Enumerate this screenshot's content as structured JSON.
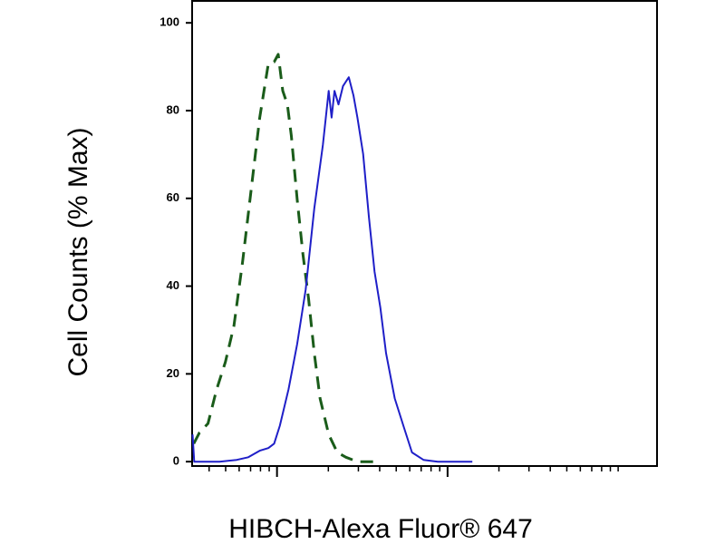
{
  "chart_data": {
    "type": "line",
    "ylabel": "Cell Counts (% Max)",
    "xlabel": "HIBCH-Alexa Fluor® 647",
    "xscale": "log",
    "xlim": [
      31.8,
      16900
    ],
    "xticks": [
      100,
      1000
    ],
    "xminorticks": [
      40,
      50,
      60,
      70,
      80,
      90,
      200,
      300,
      400,
      500,
      600,
      700,
      800,
      900,
      2000,
      3000,
      4000,
      5000,
      6000,
      7000,
      8000,
      9000,
      10000
    ],
    "ylim": [
      -1,
      105
    ],
    "yticks": [
      0,
      20,
      40,
      60,
      80,
      100
    ],
    "series": [
      {
        "color": "#1a5c1a",
        "dash": true,
        "x": [
          32.5,
          35.1,
          39.4,
          44.3,
          49.8,
          55.9,
          62.8,
          70.5,
          79.2,
          89.0,
          96.2,
          101.6,
          108.1,
          115,
          121.4,
          131.2,
          141.8,
          153.1,
          165.5,
          178.9,
          200.9,
          225.8,
          253.6,
          296,
          373
        ],
        "values": [
          4.1,
          6.6,
          8.7,
          16.5,
          22.7,
          30.9,
          45.4,
          61.9,
          78.4,
          90.7,
          91.1,
          92.8,
          84.5,
          81.4,
          74.2,
          59.8,
          47.4,
          37.1,
          24.7,
          14.4,
          6.2,
          2.1,
          1.0,
          0,
          0
        ]
      },
      {
        "color": "#1f1fc8",
        "dash": false,
        "x": [
          32.0,
          32.7,
          36.5,
          46.0,
          58.1,
          67.9,
          79.2,
          89.0,
          96.2,
          103.9,
          116.8,
          131.2,
          147.3,
          165.5,
          185.8,
          200.9,
          208.9,
          217.3,
          229.2,
          243.8,
          263.5,
          280.5,
          296,
          319.8,
          345.7,
          373,
          403.6,
          436.1,
          490.1,
          550.6,
          618.6,
          722,
          876.6,
          1396
        ],
        "values": [
          6.2,
          0,
          0,
          0,
          0.4,
          1.0,
          2.5,
          3.1,
          4.1,
          8.2,
          16.5,
          26.8,
          39.2,
          57.7,
          72.2,
          84.5,
          78.4,
          84.5,
          81.4,
          85.6,
          87.6,
          83.5,
          78.4,
          70.1,
          55.7,
          43.3,
          35.1,
          24.7,
          14.4,
          8.2,
          2.1,
          0.4,
          0,
          0
        ]
      }
    ]
  }
}
